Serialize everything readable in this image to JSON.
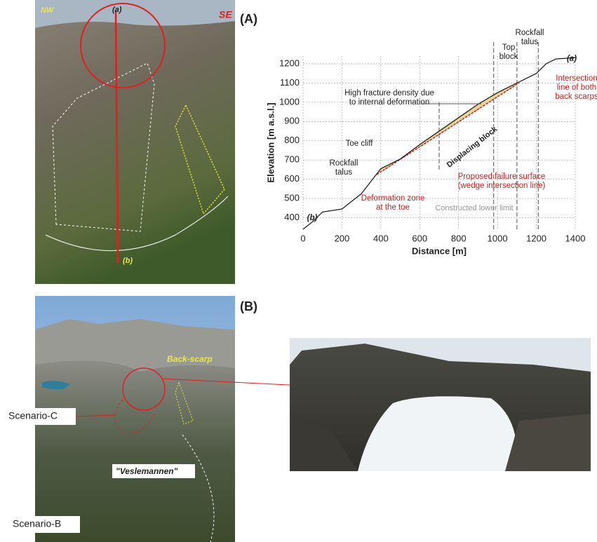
{
  "chart_data": {
    "type": "line",
    "xlabel": "Distance [m]",
    "ylabel": "Elevation [m a.s.l.]",
    "xlim": [
      0,
      1400
    ],
    "ylim": [
      340,
      1240
    ],
    "xticks": [
      0,
      200,
      400,
      600,
      800,
      1000,
      1200,
      1400
    ],
    "yticks": [
      400,
      500,
      600,
      700,
      800,
      900,
      1000,
      1100,
      1200
    ],
    "grid": true,
    "x": [
      0,
      50,
      100,
      200,
      300,
      350,
      400,
      500,
      600,
      700,
      800,
      900,
      1000,
      1100,
      1200,
      1250,
      1300,
      1400
    ],
    "series": [
      {
        "color": "#222222",
        "values": [
          340,
          380,
          430,
          445,
          525,
          590,
          655,
          705,
          780,
          850,
          920,
          990,
          1050,
          1100,
          1150,
          1200,
          1225,
          1232
        ]
      }
    ],
    "failure_surface": {
      "x": [
        380,
        1110
      ],
      "y": [
        625,
        1100
      ]
    },
    "section_lines": [
      700,
      980,
      1100,
      1210
    ],
    "annotations": {
      "fracture": [
        "High fracture density due",
        "to internal deformation"
      ],
      "toe_cliff": "Toe cliff",
      "talus_low": [
        "Rockfall",
        "talus"
      ],
      "block": "Displacing block",
      "deformation": [
        "Deformation zone",
        "at the toe"
      ],
      "lower_limit": "Constructed lower limit",
      "failure": [
        "Proposed failure surface",
        "(wedge intersection line)"
      ],
      "top_block": [
        "Top",
        "block"
      ],
      "talus_high": [
        "Rockfall",
        "talus"
      ],
      "intersection": [
        "Intersection",
        "line of both",
        "back scarps"
      ],
      "a": "(a)",
      "b": "(b)"
    }
  },
  "panels": {
    "A": "(A)",
    "B": "(B)",
    "nw": "NW",
    "se": "SE",
    "a": "(a)",
    "b": "(b)",
    "back_scarp": "Back-scarp",
    "scenario_c": "Scenario-C",
    "veslemannen": "\"Veslemannen\"",
    "scenario_b": "Scenario-B"
  }
}
